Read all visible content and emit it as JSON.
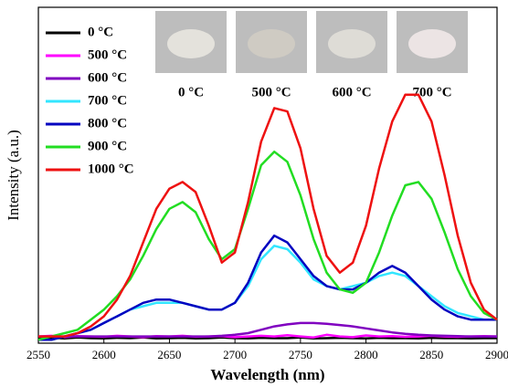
{
  "chart_data": {
    "type": "line",
    "x_label": "Wavelength (nm)",
    "y_label": "Intensity (a.u.)",
    "xlim": [
      2550,
      2900
    ],
    "xticks": [
      2550,
      2600,
      2650,
      2700,
      2750,
      2800,
      2850,
      2900
    ],
    "ylim": [
      0,
      100
    ],
    "legend": "upper left",
    "x": [
      2550,
      2560,
      2570,
      2580,
      2590,
      2600,
      2610,
      2620,
      2630,
      2640,
      2650,
      2660,
      2670,
      2680,
      2690,
      2700,
      2710,
      2720,
      2730,
      2740,
      2750,
      2760,
      2770,
      2780,
      2790,
      2800,
      2810,
      2820,
      2830,
      2840,
      2850,
      2860,
      2870,
      2880,
      2890,
      2900
    ],
    "series": [
      {
        "name": "0 °C",
        "color": "#000000",
        "values": [
          1.5,
          1.6,
          1.4,
          1.7,
          1.5,
          1.4,
          1.6,
          1.5,
          1.7,
          1.4,
          1.5,
          1.6,
          1.4,
          1.5,
          1.7,
          1.5,
          1.4,
          1.6,
          1.5,
          1.5,
          1.7,
          1.4,
          1.5,
          1.6,
          1.5,
          1.4,
          1.6,
          1.5,
          1.5,
          1.4,
          1.6,
          1.5,
          1.5,
          1.4,
          1.5,
          1.5
        ]
      },
      {
        "name": "500 °C",
        "color": "#ff00ff",
        "values": [
          2,
          2.2,
          1.8,
          2.1,
          2,
          1.9,
          2.2,
          2,
          1.8,
          2.1,
          2,
          2.2,
          1.9,
          2,
          2.1,
          1.8,
          2,
          2.2,
          2,
          2.4,
          2,
          1.7,
          2.5,
          2,
          1.8,
          2.3,
          2,
          2.1,
          1.9,
          2,
          2.2,
          2,
          1.9,
          2,
          2.1,
          2
        ]
      },
      {
        "name": "600 °C",
        "color": "#8000c0",
        "values": [
          2,
          2,
          2,
          2,
          2,
          2,
          2,
          2,
          2,
          2,
          2,
          2,
          2,
          2,
          2.2,
          2.5,
          3,
          4,
          5,
          5.6,
          6,
          6,
          5.8,
          5.4,
          5,
          4.4,
          3.8,
          3.2,
          2.8,
          2.5,
          2.3,
          2.2,
          2.1,
          2,
          2,
          2
        ]
      },
      {
        "name": "700 °C",
        "color": "#33e6ff",
        "values": [
          1,
          1,
          2,
          3,
          4,
          6,
          8,
          10,
          11,
          12,
          12,
          12,
          11,
          10,
          10,
          12,
          17,
          25,
          29,
          28,
          24,
          19,
          17,
          16,
          17,
          18,
          20,
          21,
          20,
          17,
          14,
          11,
          9,
          8,
          7,
          7
        ]
      },
      {
        "name": "800 °C",
        "color": "#0000c0",
        "values": [
          1,
          1,
          2,
          3,
          4,
          6,
          8,
          10,
          12,
          13,
          13,
          12,
          11,
          10,
          10,
          12,
          18,
          27,
          32,
          30,
          25,
          20,
          17,
          16,
          16,
          18,
          21,
          23,
          21,
          17,
          13,
          10,
          8,
          7,
          7,
          7
        ]
      },
      {
        "name": "900 °C",
        "color": "#22dd22",
        "values": [
          1,
          2,
          3,
          4,
          7,
          10,
          14,
          19,
          26,
          34,
          40,
          42,
          39,
          31,
          25,
          28,
          40,
          53,
          57,
          54,
          44,
          31,
          21,
          16,
          15,
          18,
          27,
          38,
          47,
          48,
          43,
          33,
          22,
          14,
          9,
          7
        ]
      },
      {
        "name": "1000 °C",
        "color": "#ee1111",
        "values": [
          2,
          2,
          2,
          3,
          5,
          8,
          13,
          20,
          30,
          40,
          46,
          48,
          45,
          35,
          24,
          27,
          42,
          60,
          70,
          69,
          58,
          40,
          26,
          21,
          24,
          35,
          52,
          66,
          74,
          74,
          66,
          50,
          32,
          18,
          10,
          7
        ]
      }
    ],
    "photos": [
      "0 °C",
      "500 °C",
      "600 °C",
      "700 °C"
    ]
  }
}
